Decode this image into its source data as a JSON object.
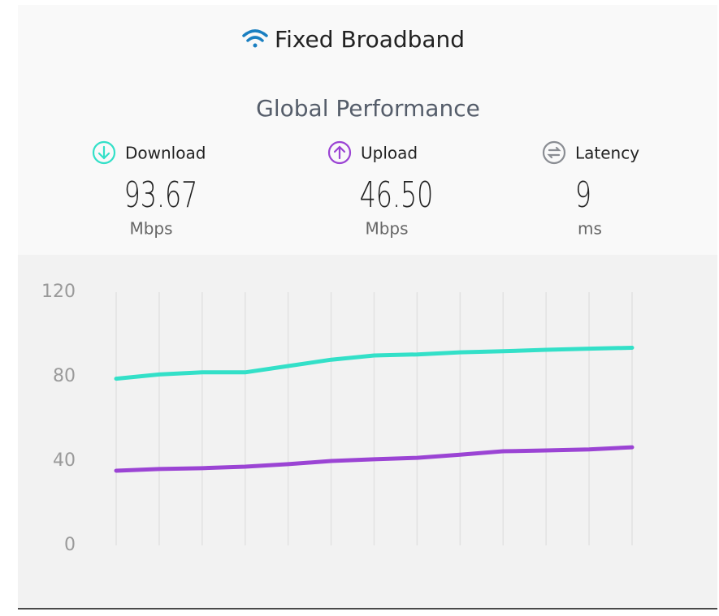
{
  "header": {
    "title": "Fixed Broadband",
    "subtitle": "Global Performance"
  },
  "stats": [
    {
      "value": "93.67",
      "unit": "Mbps"
    },
    {
      "value": "46.50",
      "unit": "Mbps"
    }
  ],
  "latency": {
    "label": "Latency",
    "value": "9",
    "unit": "ms"
  },
  "chart_data": {
    "type": "line",
    "categories": [
      null,
      null,
      null,
      null,
      null,
      null,
      null,
      null,
      null,
      null,
      null,
      null,
      null
    ],
    "series": [
      {
        "name": "Download",
        "color": "#33e0c8",
        "values": [
          79,
          81,
          82,
          82,
          85,
          88,
          90,
          90.5,
          91.5,
          92,
          92.7,
          93.2,
          93.67
        ]
      },
      {
        "name": "Upload",
        "color": "#9b44d4",
        "values": [
          35.4,
          36.2,
          36.6,
          37.3,
          38.5,
          40,
          40.8,
          41.5,
          43,
          44.6,
          45,
          45.5,
          46.5
        ]
      }
    ],
    "ylim": [
      0,
      120
    ],
    "yticks": [
      0,
      40,
      80,
      120
    ],
    "grid": true
  }
}
